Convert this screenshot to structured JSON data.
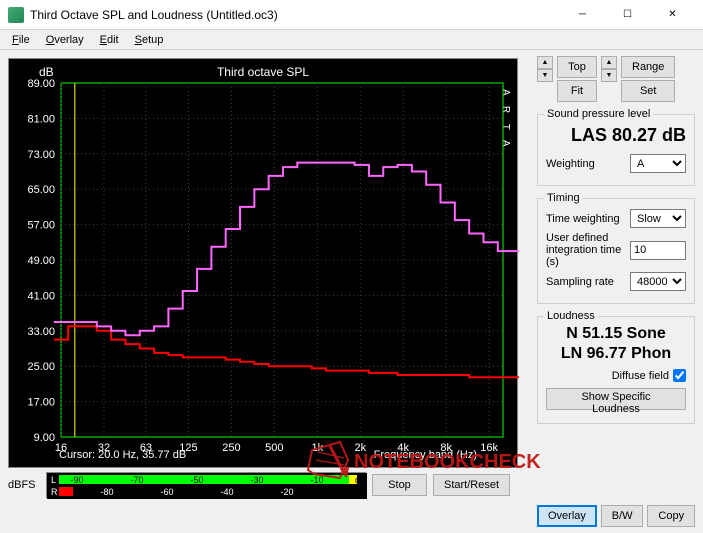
{
  "window": {
    "title": "Third Octave SPL and Loudness (Untitled.oc3)"
  },
  "menu": {
    "file": "File",
    "overlay": "Overlay",
    "edit": "Edit",
    "setup": "Setup"
  },
  "chart": {
    "title": "Third octave SPL",
    "ylabel": "dB",
    "xlabel": "Frequency band (Hz)",
    "arta": "A R T A",
    "cursor": "Cursor:  20.0 Hz, 35.77 dB",
    "bg": "#000000",
    "grid_color": "#404040",
    "axis_color": "#00ff00",
    "pink_line": "#ff66ff",
    "red_line": "#ff0000",
    "cursor_line": "#ffff00",
    "text_color": "#ffffff",
    "ylim": [
      9,
      89
    ],
    "ytick_step": 8,
    "yticks": [
      "89.00",
      "81.00",
      "73.00",
      "65.00",
      "57.00",
      "49.00",
      "41.00",
      "33.00",
      "25.00",
      "17.00",
      "9.00"
    ],
    "xticks": [
      "16",
      "32",
      "63",
      "125",
      "250",
      "500",
      "1k",
      "2k",
      "4k",
      "8k",
      "16k"
    ],
    "pink_data": [
      35,
      35,
      35,
      34,
      33,
      32,
      33,
      34,
      38,
      42,
      47,
      52,
      56,
      61,
      65,
      68,
      70,
      71,
      71,
      71,
      71,
      70.5,
      68,
      70,
      70.5,
      69,
      66,
      62,
      58,
      55,
      53,
      51,
      51
    ],
    "red_data": [
      31,
      34,
      34,
      33,
      31,
      30,
      29,
      28,
      27.5,
      27,
      27,
      27,
      26.5,
      26,
      25.5,
      25,
      25,
      25,
      24.5,
      24,
      24,
      24,
      23.5,
      23.5,
      23,
      23,
      23,
      23,
      23,
      22.5,
      22.5,
      22.5,
      22.5
    ]
  },
  "nav": {
    "top": "Top",
    "fit": "Fit",
    "range": "Range",
    "set": "Set"
  },
  "spl": {
    "legend": "Sound pressure level",
    "value": "LAS 80.27 dB",
    "weighting_label": "Weighting",
    "weighting_value": "A"
  },
  "timing": {
    "legend": "Timing",
    "tw_label": "Time weighting",
    "tw_value": "Slow",
    "int_label": "User defined integration time (s)",
    "int_value": "10",
    "sr_label": "Sampling rate",
    "sr_value": "48000"
  },
  "loudness": {
    "legend": "Loudness",
    "sone": "N 51.15 Sone",
    "phon": "LN 96.77 Phon",
    "diffuse_label": "Diffuse field",
    "diffuse_checked": true,
    "show_specific": "Show Specific Loudness"
  },
  "buttons": {
    "stop": "Stop",
    "start": "Start/Reset",
    "overlay": "Overlay",
    "bw": "B/W",
    "copy": "Copy"
  },
  "dbfs": {
    "label": "dBFS",
    "top_ticks": [
      "-90",
      "-70",
      "-50",
      "-30",
      "-10"
    ],
    "bot_ticks": [
      "-80",
      "-60",
      "-40",
      "-20"
    ],
    "top_suffix": "dB",
    "green": "#00ff00",
    "red": "#ff0000",
    "yellow": "#ffff00"
  },
  "watermark": {
    "text": "NOTEBOOKCHECK",
    "color": "#d02020"
  }
}
